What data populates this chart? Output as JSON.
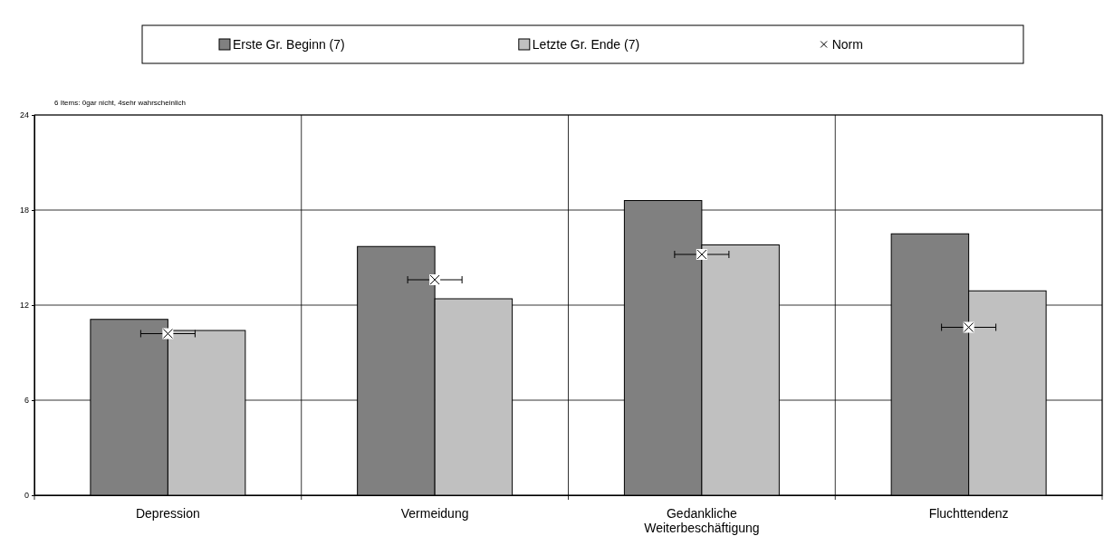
{
  "chart_data": {
    "type": "bar",
    "categories": [
      "Depression",
      "Vermeidung",
      "Gedankliche Weiterbeschäftigung",
      "Fluchttendenz"
    ],
    "series": [
      {
        "name": "Erste Gr. Beginn (7)",
        "color": "#808080",
        "values": [
          11.1,
          15.7,
          18.6,
          16.5
        ]
      },
      {
        "name": "Letzte Gr. Ende (7)",
        "color": "#c0c0c0",
        "values": [
          10.4,
          12.4,
          15.8,
          12.9
        ]
      },
      {
        "name": "Norm",
        "type": "scatter",
        "color": "#000000",
        "marker": "cross",
        "x": [
          "Depression",
          "Vermeidung",
          "Gedankliche Weiterbeschäftigung",
          "Fluchttendenz"
        ],
        "values": [
          10.2,
          13.6,
          15.2,
          10.6
        ]
      }
    ],
    "ylim": [
      0,
      24
    ],
    "yticks": [
      0,
      6,
      12,
      18,
      24
    ],
    "grid": true,
    "legend": "top",
    "annotations": [
      "6 Items: 0gar nicht, 4sehr wahrscheinlich"
    ]
  }
}
